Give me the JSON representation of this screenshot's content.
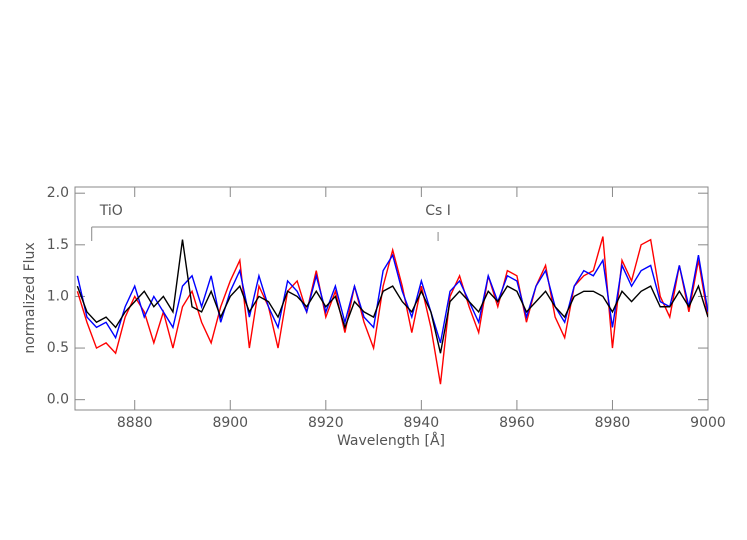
{
  "chart_data": {
    "type": "line",
    "xlabel": "Wavelength [Å]",
    "ylabel": "normalized Flux",
    "x": [
      8868,
      8870,
      8872,
      8874,
      8876,
      8878,
      8880,
      8882,
      8884,
      8886,
      8888,
      8890,
      8892,
      8894,
      8896,
      8898,
      8900,
      8902,
      8904,
      8906,
      8908,
      8910,
      8912,
      8914,
      8916,
      8918,
      8920,
      8922,
      8924,
      8926,
      8928,
      8930,
      8932,
      8934,
      8936,
      8938,
      8940,
      8942,
      8944,
      8946,
      8948,
      8950,
      8952,
      8954,
      8956,
      8958,
      8960,
      8962,
      8964,
      8966,
      8968,
      8970,
      8972,
      8974,
      8976,
      8978,
      8980,
      8982,
      8984,
      8986,
      8988,
      8990,
      8992,
      8994,
      8996,
      8998,
      9000
    ],
    "series": [
      {
        "color": "#ff0000",
        "values": [
          1.05,
          0.75,
          0.5,
          0.55,
          0.45,
          0.8,
          1.0,
          0.85,
          0.55,
          0.85,
          0.5,
          0.9,
          1.05,
          0.75,
          0.55,
          0.9,
          1.15,
          1.35,
          0.5,
          1.1,
          0.9,
          0.5,
          1.05,
          1.15,
          0.85,
          1.25,
          0.8,
          1.05,
          0.65,
          1.1,
          0.75,
          0.5,
          1.1,
          1.45,
          1.1,
          0.65,
          1.1,
          0.7,
          0.15,
          1.0,
          1.2,
          0.9,
          0.65,
          1.2,
          0.9,
          1.25,
          1.2,
          0.75,
          1.1,
          1.3,
          0.8,
          0.6,
          1.1,
          1.2,
          1.25,
          1.58,
          0.5,
          1.35,
          1.15,
          1.5,
          1.55,
          1.0,
          0.8,
          1.3,
          0.85,
          1.35,
          0.8
        ]
      },
      {
        "color": "#0000ff",
        "values": [
          1.2,
          0.8,
          0.7,
          0.75,
          0.6,
          0.9,
          1.1,
          0.8,
          1.0,
          0.85,
          0.7,
          1.1,
          1.2,
          0.9,
          1.2,
          0.75,
          1.05,
          1.25,
          0.8,
          1.2,
          0.9,
          0.7,
          1.15,
          1.05,
          0.85,
          1.2,
          0.85,
          1.1,
          0.75,
          1.1,
          0.8,
          0.7,
          1.25,
          1.4,
          1.05,
          0.8,
          1.15,
          0.85,
          0.55,
          1.05,
          1.15,
          0.95,
          0.75,
          1.2,
          0.95,
          1.2,
          1.15,
          0.8,
          1.1,
          1.25,
          0.9,
          0.75,
          1.1,
          1.25,
          1.2,
          1.35,
          0.7,
          1.3,
          1.1,
          1.25,
          1.3,
          0.95,
          0.9,
          1.3,
          0.9,
          1.4,
          0.85
        ]
      },
      {
        "color": "#000000",
        "values": [
          1.1,
          0.85,
          0.75,
          0.8,
          0.7,
          0.85,
          0.95,
          1.05,
          0.9,
          1.0,
          0.85,
          1.55,
          0.9,
          0.85,
          1.05,
          0.8,
          1.0,
          1.1,
          0.85,
          1.0,
          0.95,
          0.8,
          1.05,
          1.0,
          0.9,
          1.05,
          0.9,
          1.0,
          0.7,
          0.95,
          0.85,
          0.8,
          1.05,
          1.1,
          0.95,
          0.85,
          1.05,
          0.85,
          0.45,
          0.95,
          1.05,
          0.95,
          0.85,
          1.05,
          0.95,
          1.1,
          1.05,
          0.85,
          0.95,
          1.05,
          0.9,
          0.8,
          1.0,
          1.05,
          1.05,
          1.0,
          0.85,
          1.05,
          0.95,
          1.05,
          1.1,
          0.9,
          0.9,
          1.05,
          0.9,
          1.1,
          0.8
        ]
      }
    ],
    "xlim": [
      8867.5,
      9000
    ],
    "ylim": [
      -0.1,
      2.06
    ],
    "xticks": [
      8880,
      8900,
      8920,
      8940,
      8960,
      8980,
      9000
    ],
    "yticks": [
      {
        "value": 0,
        "label": "0.0"
      },
      0.5,
      {
        "value": 1,
        "label": "1.0"
      },
      1.5,
      {
        "value": 2,
        "label": "2.0"
      }
    ],
    "annotations": [
      {
        "text": "TiO",
        "x": 8871
      },
      {
        "text": "Cs I",
        "x": 8943.5
      }
    ]
  }
}
